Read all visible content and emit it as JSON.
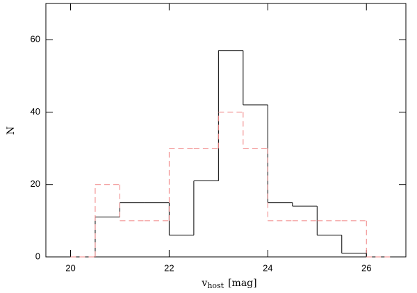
{
  "chart_data": {
    "type": "histogram",
    "xlabel": {
      "main": "v",
      "sub": "host",
      "unit": "[mag]"
    },
    "ylabel": "N",
    "bins": [
      20,
      20.5,
      21,
      21.5,
      22,
      22.5,
      23,
      23.5,
      24,
      24.5,
      25,
      25.5,
      26,
      26.5
    ],
    "series": [
      {
        "color": "#000000",
        "dashed": false,
        "values": [
          0,
          11,
          15,
          15,
          6,
          21,
          57,
          42,
          15,
          14,
          6,
          1,
          0
        ]
      },
      {
        "color": "#f08080",
        "dashed": true,
        "values": [
          0,
          20,
          10,
          10,
          30,
          30,
          40,
          30,
          10,
          10,
          10,
          10,
          0
        ]
      }
    ],
    "xlim": [
      19.5,
      26.8
    ],
    "ylim": [
      0,
      70
    ],
    "xticks": [
      20,
      22,
      24,
      26
    ],
    "yticks": [
      0,
      20,
      40,
      60
    ]
  }
}
